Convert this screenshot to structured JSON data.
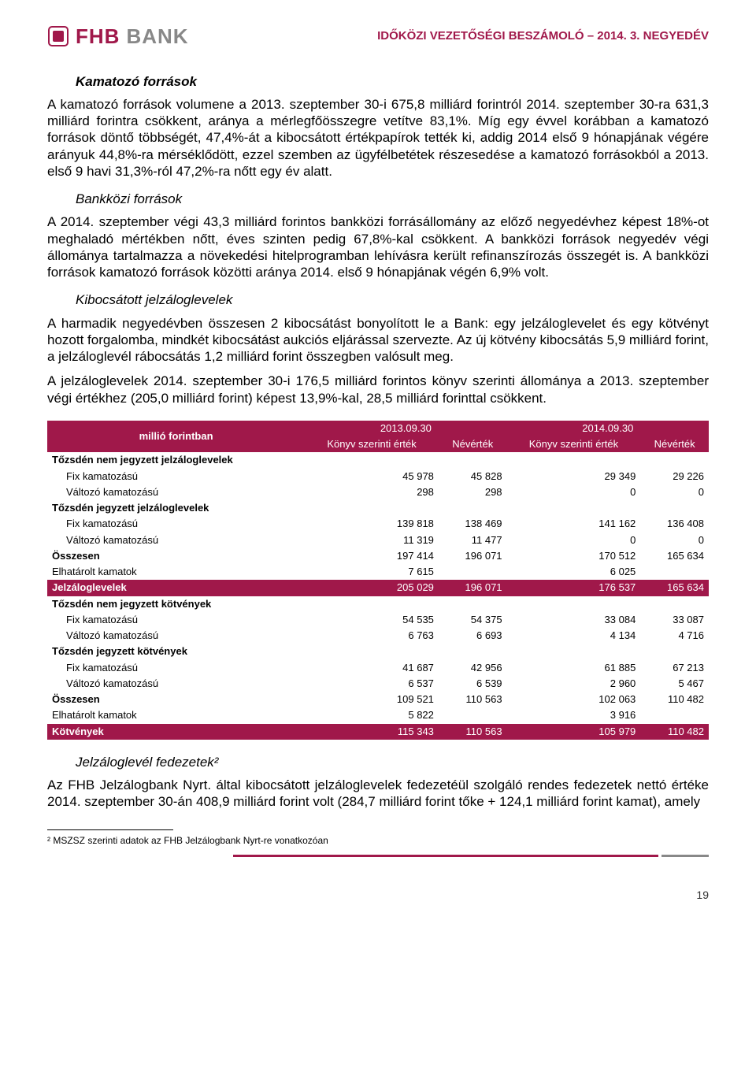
{
  "header": {
    "logo_fhb": "FHB",
    "logo_bank": "BANK",
    "title": "IDŐKÖZI VEZETŐSÉGI BESZÁMOLÓ – 2014. 3. NEGYEDÉV"
  },
  "sections": {
    "s1_title": "Kamatozó források",
    "s1_p1": "A kamatozó források volumene a 2013. szeptember 30-i 675,8 milliárd forintról 2014. szeptember 30-ra 631,3 milliárd forintra csökkent, aránya a mérlegfőösszegre vetítve 83,1%. Míg egy évvel korábban a kamatozó források döntő többségét, 47,4%-át a kibocsátott értékpapírok tették ki, addig 2014 első 9 hónapjának végére arányuk 44,8%-ra mérséklődött, ezzel szemben az ügyfélbetétek részesedése a kamatozó forrásokból a 2013. első 9 havi 31,3%-ról 47,2%-ra nőtt egy év alatt.",
    "s2_title": "Bankközi források",
    "s2_p1": "A 2014. szeptember végi 43,3 milliárd forintos bankközi forrásállomány az előző negyedévhez képest 18%-ot meghaladó mértékben nőtt, éves szinten pedig 67,8%-kal csökkent. A bankközi források negyedév végi állománya tartalmazza a növekedési hitelprogramban lehívásra került refinanszírozás összegét is. A bankközi források kamatozó források közötti aránya 2014. első 9 hónapjának végén 6,9% volt.",
    "s3_title": "Kibocsátott jelzáloglevelek",
    "s3_p1": "A harmadik negyedévben összesen 2 kibocsátást bonyolított le a Bank: egy jelzáloglevelet és egy kötvényt hozott forgalomba, mindkét kibocsátást aukciós eljárással szervezte. Az új kötvény kibocsátás 5,9 milliárd forint, a jelzáloglevél rábocsátás 1,2 milliárd forint összegben valósult meg.",
    "s3_p2": "A jelzáloglevelek 2014. szeptember 30-i 176,5 milliárd forintos könyv szerinti állománya a 2013. szeptember végi értékhez (205,0 milliárd forint) képest 13,9%-kal, 28,5 milliárd forinttal csökkent.",
    "s4_title": "Jelzáloglevél fedezetek²",
    "s4_p1": "Az FHB Jelzálogbank Nyrt. által kibocsátott jelzáloglevelek fedezetéül szolgáló rendes fedezetek nettó értéke 2014. szeptember 30-án 408,9 milliárd forint volt (284,7 milliárd forint tőke + 124,1 milliárd forint kamat), amely"
  },
  "table": {
    "row_label_header": "millió forintban",
    "period1": "2013.09.30",
    "period2": "2014.09.30",
    "col_ksz": "Könyv szerinti érték",
    "col_nev": "Névérték",
    "rows": [
      {
        "type": "group",
        "label": "Tőzsdén nem jegyzett jelzáloglevelek",
        "v": [
          "",
          "",
          "",
          ""
        ]
      },
      {
        "type": "sub",
        "label": "Fix kamatozású",
        "v": [
          "45 978",
          "45 828",
          "29 349",
          "29 226"
        ]
      },
      {
        "type": "sub",
        "label": "Változó kamatozású",
        "v": [
          "298",
          "298",
          "0",
          "0"
        ]
      },
      {
        "type": "group",
        "label": "Tőzsdén jegyzett jelzáloglevelek",
        "v": [
          "",
          "",
          "",
          ""
        ]
      },
      {
        "type": "sub",
        "label": "Fix kamatozású",
        "v": [
          "139 818",
          "138 469",
          "141 162",
          "136 408"
        ]
      },
      {
        "type": "sub",
        "label": "Változó kamatozású",
        "v": [
          "11 319",
          "11 477",
          "0",
          "0"
        ]
      },
      {
        "type": "total",
        "label": "Összesen",
        "v": [
          "197 414",
          "196 071",
          "170 512",
          "165 634"
        ]
      },
      {
        "type": "plain",
        "label": "Elhatárolt kamatok",
        "v": [
          "7 615",
          "",
          "6 025",
          ""
        ]
      },
      {
        "type": "highlight",
        "label": "Jelzáloglevelek",
        "v": [
          "205 029",
          "196 071",
          "176 537",
          "165 634"
        ]
      },
      {
        "type": "group",
        "label": "Tőzsdén nem jegyzett kötvények",
        "v": [
          "",
          "",
          "",
          ""
        ]
      },
      {
        "type": "sub",
        "label": "Fix kamatozású",
        "v": [
          "54 535",
          "54 375",
          "33 084",
          "33 087"
        ]
      },
      {
        "type": "sub",
        "label": "Változó kamatozású",
        "v": [
          "6 763",
          "6 693",
          "4 134",
          "4 716"
        ]
      },
      {
        "type": "group",
        "label": "Tőzsdén jegyzett kötvények",
        "v": [
          "",
          "",
          "",
          ""
        ]
      },
      {
        "type": "sub",
        "label": "Fix kamatozású",
        "v": [
          "41 687",
          "42 956",
          "61 885",
          "67 213"
        ]
      },
      {
        "type": "sub",
        "label": "Változó kamatozású",
        "v": [
          "6 537",
          "6 539",
          "2 960",
          "5 467"
        ]
      },
      {
        "type": "total",
        "label": "Összesen",
        "v": [
          "109 521",
          "110 563",
          "102 063",
          "110 482"
        ]
      },
      {
        "type": "plain",
        "label": "Elhatárolt kamatok",
        "v": [
          "5 822",
          "",
          "3 916",
          ""
        ]
      },
      {
        "type": "highlight",
        "label": "Kötvények",
        "v": [
          "115 343",
          "110 563",
          "105 979",
          "110 482"
        ]
      }
    ]
  },
  "footnote": "² MSZSZ szerinti adatok az FHB Jelzálogbank Nyrt-re vonatkozóan",
  "page_number": "19",
  "colors": {
    "brand": "#a0184a",
    "grey": "#888888"
  }
}
